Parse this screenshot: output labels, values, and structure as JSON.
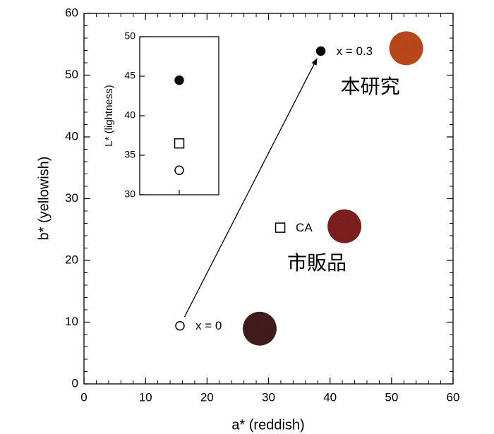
{
  "chart_data": [
    {
      "type": "scatter",
      "xlabel": "a* (reddish)",
      "ylabel": "b* (yellowish)",
      "xlim": [
        0,
        60
      ],
      "xticks": [
        0,
        10,
        20,
        30,
        40,
        50,
        60
      ],
      "ylim": [
        0,
        60
      ],
      "yticks": [
        0,
        10,
        20,
        30,
        40,
        50,
        60
      ],
      "series": [
        {
          "name": "x = 0",
          "marker": "open-circle",
          "swatch": "#4a2222",
          "x": [
            15.6
          ],
          "values": [
            9.4
          ]
        },
        {
          "name": "CA",
          "marker": "open-square",
          "swatch": "#8c2424",
          "group": "市販品",
          "x": [
            31.9
          ],
          "values": [
            25.3
          ]
        },
        {
          "name": "x = 0.3",
          "marker": "filled-circle",
          "swatch": "#d0521f",
          "group": "本研究",
          "x": [
            38.5
          ],
          "values": [
            53.9
          ]
        }
      ],
      "arrow": [
        0,
        2
      ]
    },
    {
      "type": "scatter",
      "ylabel": "L* (lightness)",
      "ylim": [
        30,
        50
      ],
      "yticks": [
        30,
        35,
        40,
        45,
        50
      ],
      "series": [
        {
          "marker": "filled-circle",
          "values": [
            44.5
          ]
        },
        {
          "marker": "open-square",
          "values": [
            36.5
          ]
        },
        {
          "marker": "open-circle",
          "values": [
            33.1
          ]
        }
      ]
    }
  ]
}
